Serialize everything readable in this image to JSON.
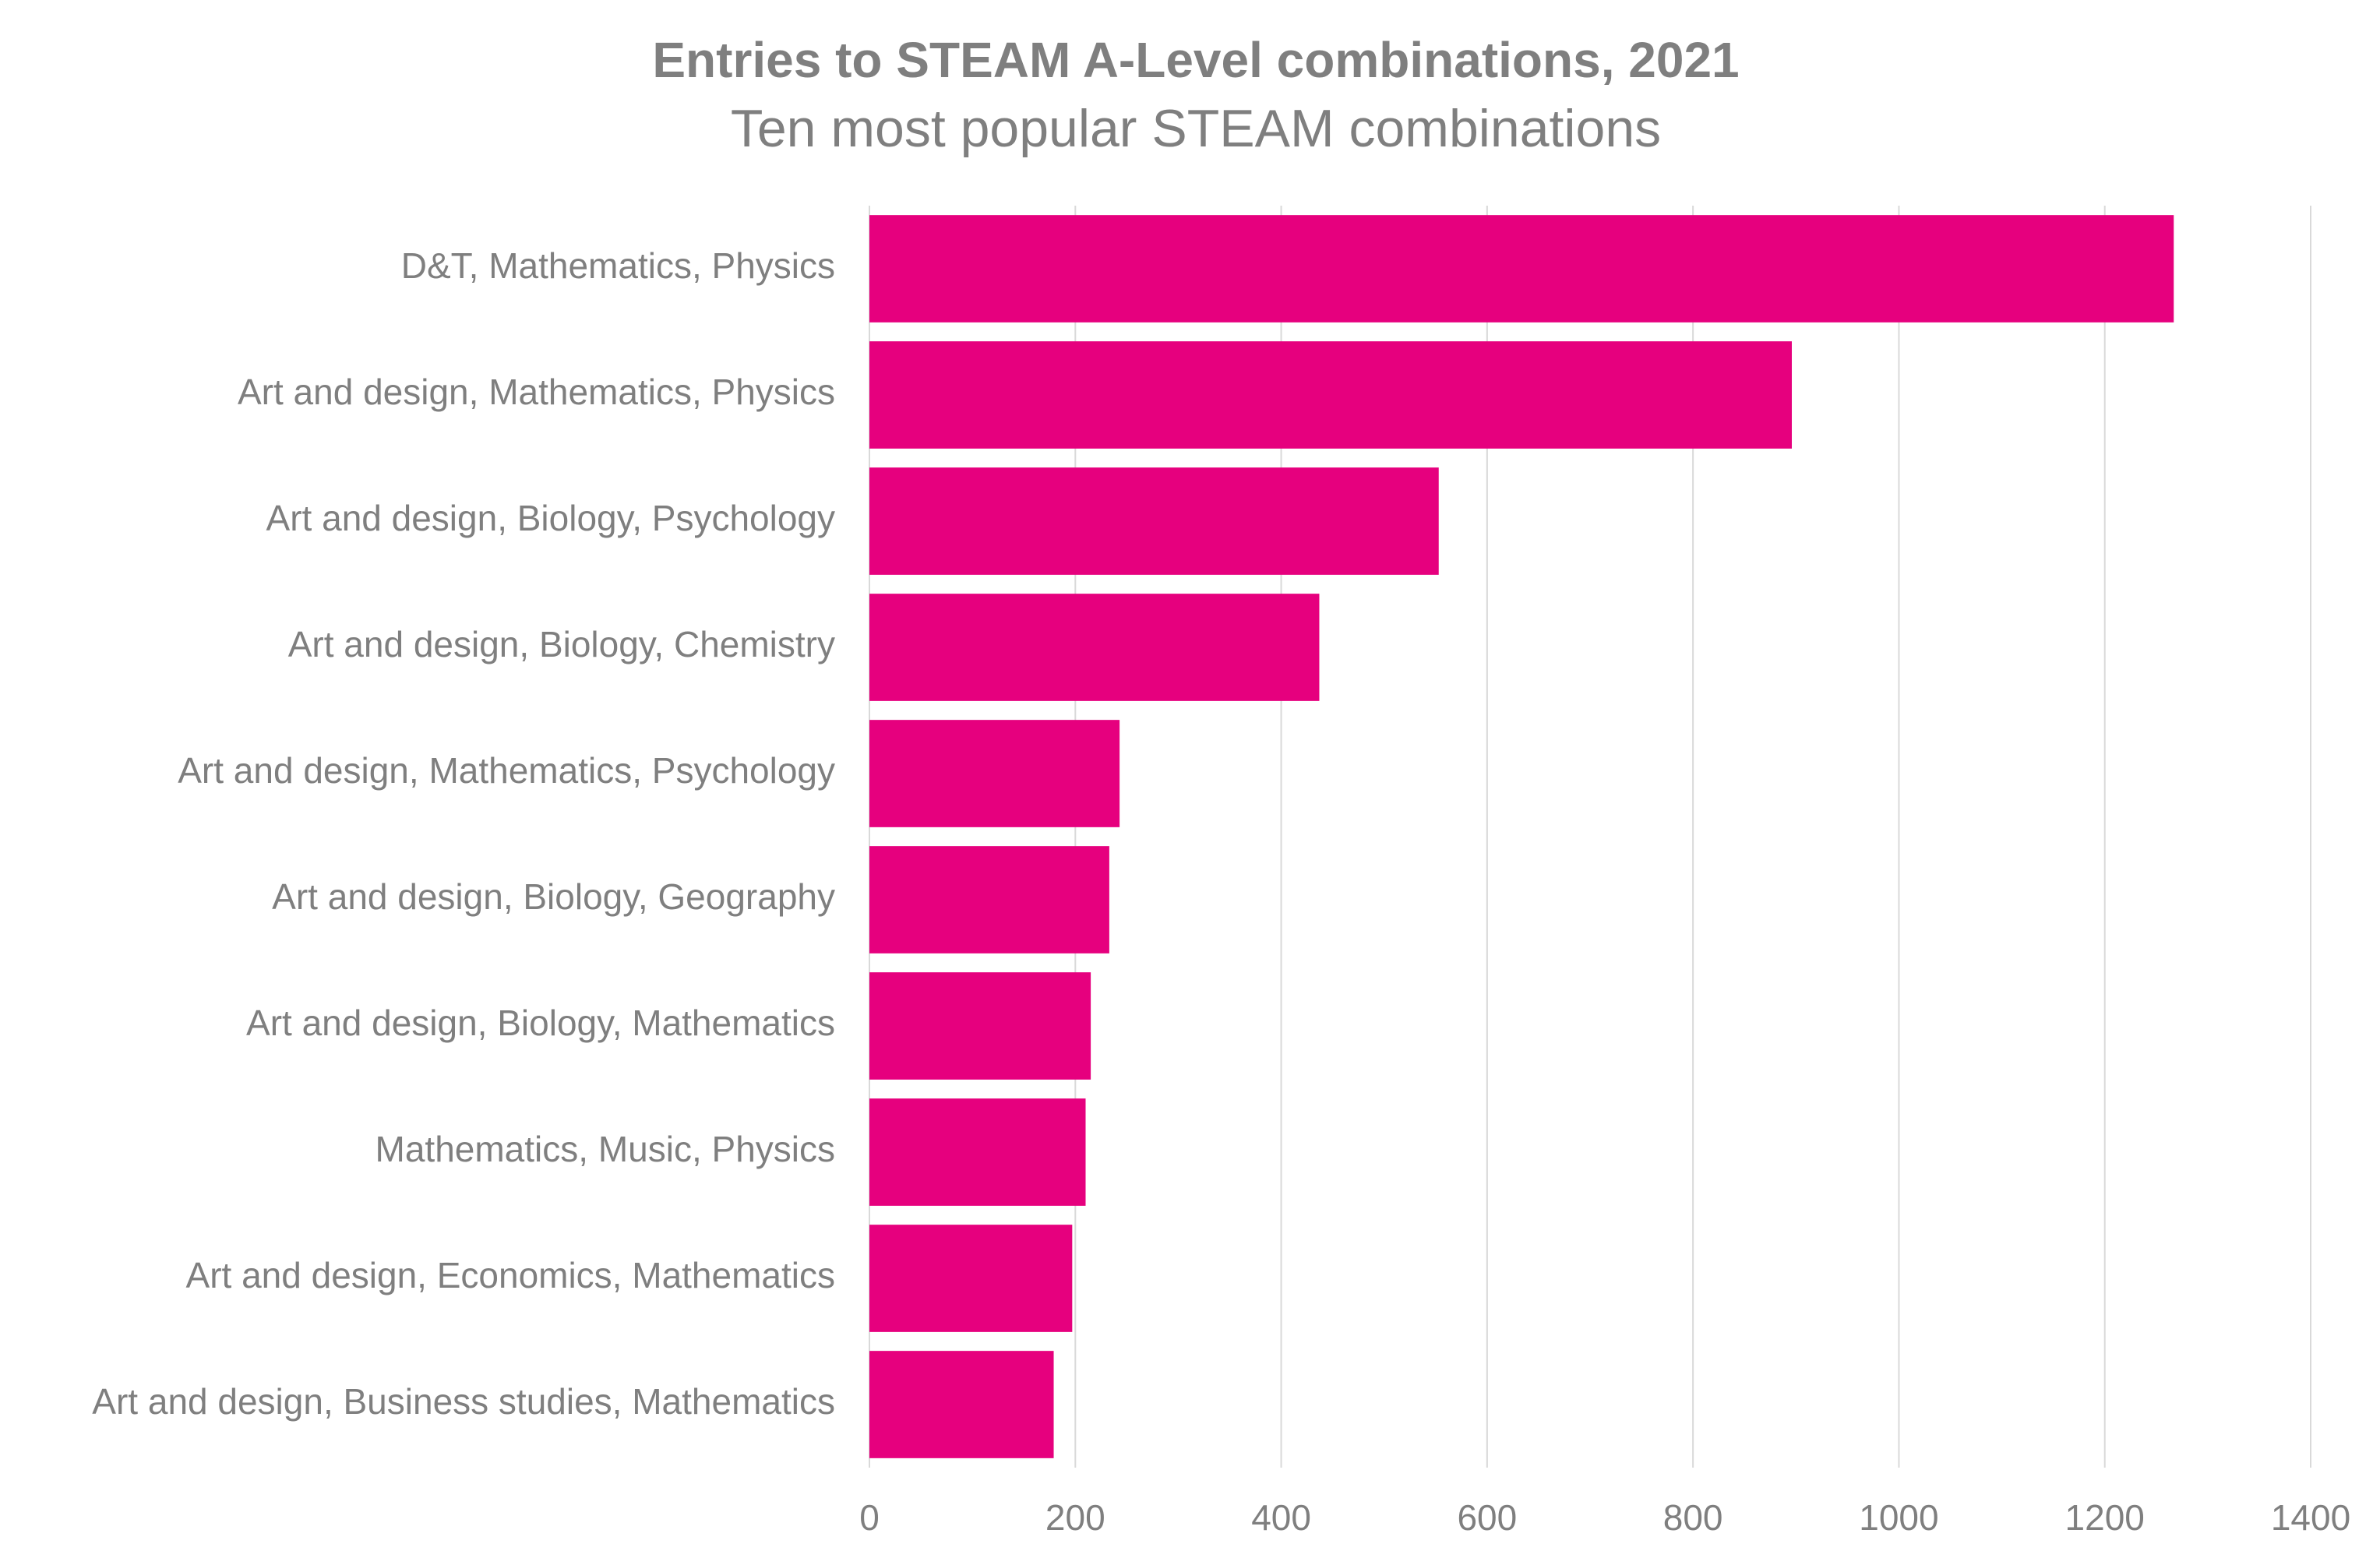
{
  "chart_data": {
    "type": "hbar",
    "title": "Entries to STEAM A-Level combinations, 2021",
    "subtitle": "Ten most popular STEAM combinations",
    "categories": [
      "D&T, Mathematics, Physics",
      "Art and design, Mathematics, Physics",
      "Art and design, Biology, Psychology",
      "Art and design, Biology, Chemistry",
      "Art and design, Mathematics, Psychology",
      "Art and design, Biology, Geography",
      "Art and design, Biology, Mathematics",
      "Mathematics, Music, Physics",
      "Art and design, Economics, Mathematics",
      "Art and design, Business studies, Mathematics"
    ],
    "values": [
      1267,
      896,
      553,
      437,
      243,
      233,
      215,
      210,
      197,
      179
    ],
    "color": "#e6007e",
    "xlim": [
      0,
      1400
    ],
    "xticks": [
      0,
      200,
      400,
      600,
      800,
      1000,
      1200,
      1400
    ],
    "grid": true
  }
}
